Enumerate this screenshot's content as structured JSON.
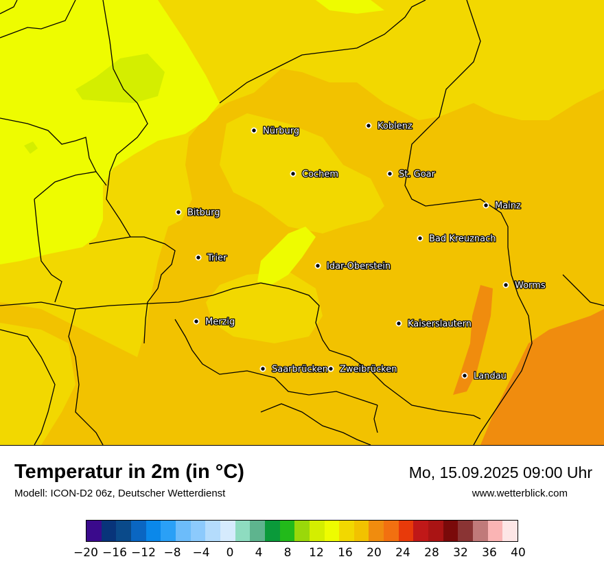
{
  "map": {
    "cities": [
      {
        "name": "Nürburg"
      },
      {
        "name": "Koblenz"
      },
      {
        "name": "Cochem"
      },
      {
        "name": "St. Goar"
      },
      {
        "name": "Bitburg"
      },
      {
        "name": "Mainz"
      },
      {
        "name": "Bad Kreuznach"
      },
      {
        "name": "Trier"
      },
      {
        "name": "Idar-Oberstein"
      },
      {
        "name": "Worms"
      },
      {
        "name": "Merzig"
      },
      {
        "name": "Kaiserslautern"
      },
      {
        "name": "Saarbrücken"
      },
      {
        "name": "Zweibrücken"
      },
      {
        "name": "Landau"
      }
    ],
    "colors": {
      "temp_14_16": "#eefc00",
      "temp_12_14": "#d4ee00",
      "temp_16_18": "#f2d800",
      "temp_18_20": "#f2c200",
      "temp_20_22": "#f08c0e",
      "border": "#000000"
    }
  },
  "footer": {
    "title": "Temperatur in 2m (in °C)",
    "model": "Modell: ICON-D2 06z, Deutscher Wetterdienst",
    "datetime": "Mo, 15.09.2025 09:00 Uhr",
    "website": "www.wetterblick.com"
  },
  "legend": {
    "colors": [
      "#3a0a8c",
      "#08347a",
      "#0a4a8a",
      "#0a66c2",
      "#0a88ea",
      "#2aa0f6",
      "#6cbcfa",
      "#8ccafc",
      "#b4dcfc",
      "#d6ebfd",
      "#8edcc0",
      "#5eb48e",
      "#0a9a3a",
      "#22ba1a",
      "#9ad80a",
      "#d4ee00",
      "#eefc00",
      "#f2d800",
      "#f2c200",
      "#f08c0e",
      "#f27010",
      "#e83a0a",
      "#c01818",
      "#aa1414",
      "#7a0a0a",
      "#8a3434",
      "#c07a7a",
      "#fab4b4",
      "#fde6e6"
    ],
    "tick_labels": [
      "−20",
      "−16",
      "−12",
      "−8",
      "−4",
      "0",
      "4",
      "8",
      "12",
      "16",
      "20",
      "24",
      "28",
      "32",
      "36",
      "40"
    ]
  }
}
